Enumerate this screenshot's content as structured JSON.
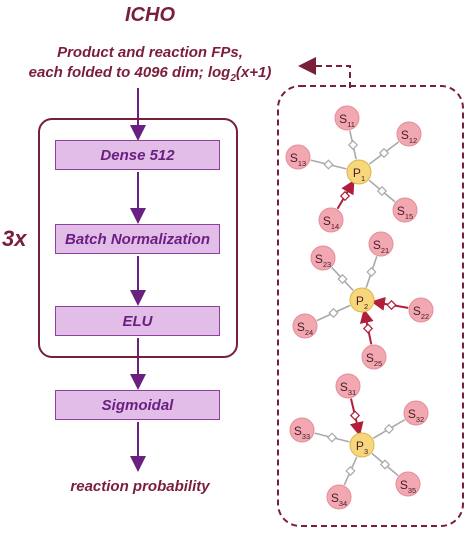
{
  "header": {
    "title": "ICHO",
    "subtitle_line1": "Product and reaction FPs,",
    "subtitle_line2_prefix": "each folded to 4096 dim; log",
    "subtitle_line2_sub": "2",
    "subtitle_line2_suffix": "(x+1)"
  },
  "network": {
    "repeat_label": "3x",
    "layers": [
      "Dense 512",
      "Batch Normalization",
      "ELU"
    ],
    "final_layer": "Sigmoidal",
    "output_label": "reaction probability"
  },
  "graph": {
    "colors": {
      "substrate_node": "#f1a8b0",
      "product_node": "#f6d77b",
      "frame": "#7a1f3a",
      "arrow": "#b01e3a",
      "bond": "#aaaaaa"
    },
    "clusters": [
      {
        "product": {
          "base": "P",
          "sub": "1"
        },
        "substrates": [
          {
            "base": "S",
            "sub": "11",
            "arrow": false
          },
          {
            "base": "S",
            "sub": "12",
            "arrow": false
          },
          {
            "base": "S",
            "sub": "13",
            "arrow": false
          },
          {
            "base": "S",
            "sub": "14",
            "arrow": true
          },
          {
            "base": "S",
            "sub": "15",
            "arrow": false
          }
        ]
      },
      {
        "product": {
          "base": "P",
          "sub": "2"
        },
        "substrates": [
          {
            "base": "S",
            "sub": "21",
            "arrow": false
          },
          {
            "base": "S",
            "sub": "22",
            "arrow": true
          },
          {
            "base": "S",
            "sub": "23",
            "arrow": false
          },
          {
            "base": "S",
            "sub": "24",
            "arrow": false
          },
          {
            "base": "S",
            "sub": "25",
            "arrow": true
          }
        ]
      },
      {
        "product": {
          "base": "P",
          "sub": "3"
        },
        "substrates": [
          {
            "base": "S",
            "sub": "31",
            "arrow": true
          },
          {
            "base": "S",
            "sub": "32",
            "arrow": false
          },
          {
            "base": "S",
            "sub": "33",
            "arrow": false
          },
          {
            "base": "S",
            "sub": "34",
            "arrow": false
          },
          {
            "base": "S",
            "sub": "35",
            "arrow": false
          }
        ]
      }
    ]
  }
}
